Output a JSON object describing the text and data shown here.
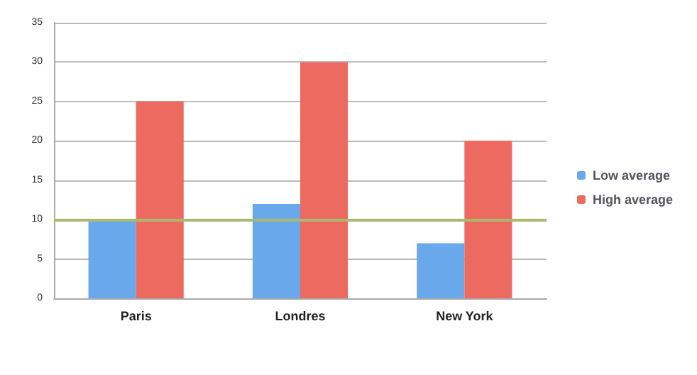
{
  "chart_data": {
    "type": "bar",
    "categories": [
      "Paris",
      "Londres",
      "New York"
    ],
    "series": [
      {
        "name": "Low average",
        "color": "#6aa8ec",
        "values": [
          10,
          12,
          7
        ]
      },
      {
        "name": "High average",
        "color": "#ec6a60",
        "values": [
          25,
          30,
          20
        ]
      }
    ],
    "ylim": [
      0,
      35
    ],
    "yticks": [
      0,
      5,
      10,
      15,
      20,
      25,
      30,
      35
    ],
    "grid": "y",
    "legend": "right",
    "ref_lines": [
      {
        "axis": "y",
        "value": 10,
        "color": "#a9b96e"
      }
    ]
  }
}
